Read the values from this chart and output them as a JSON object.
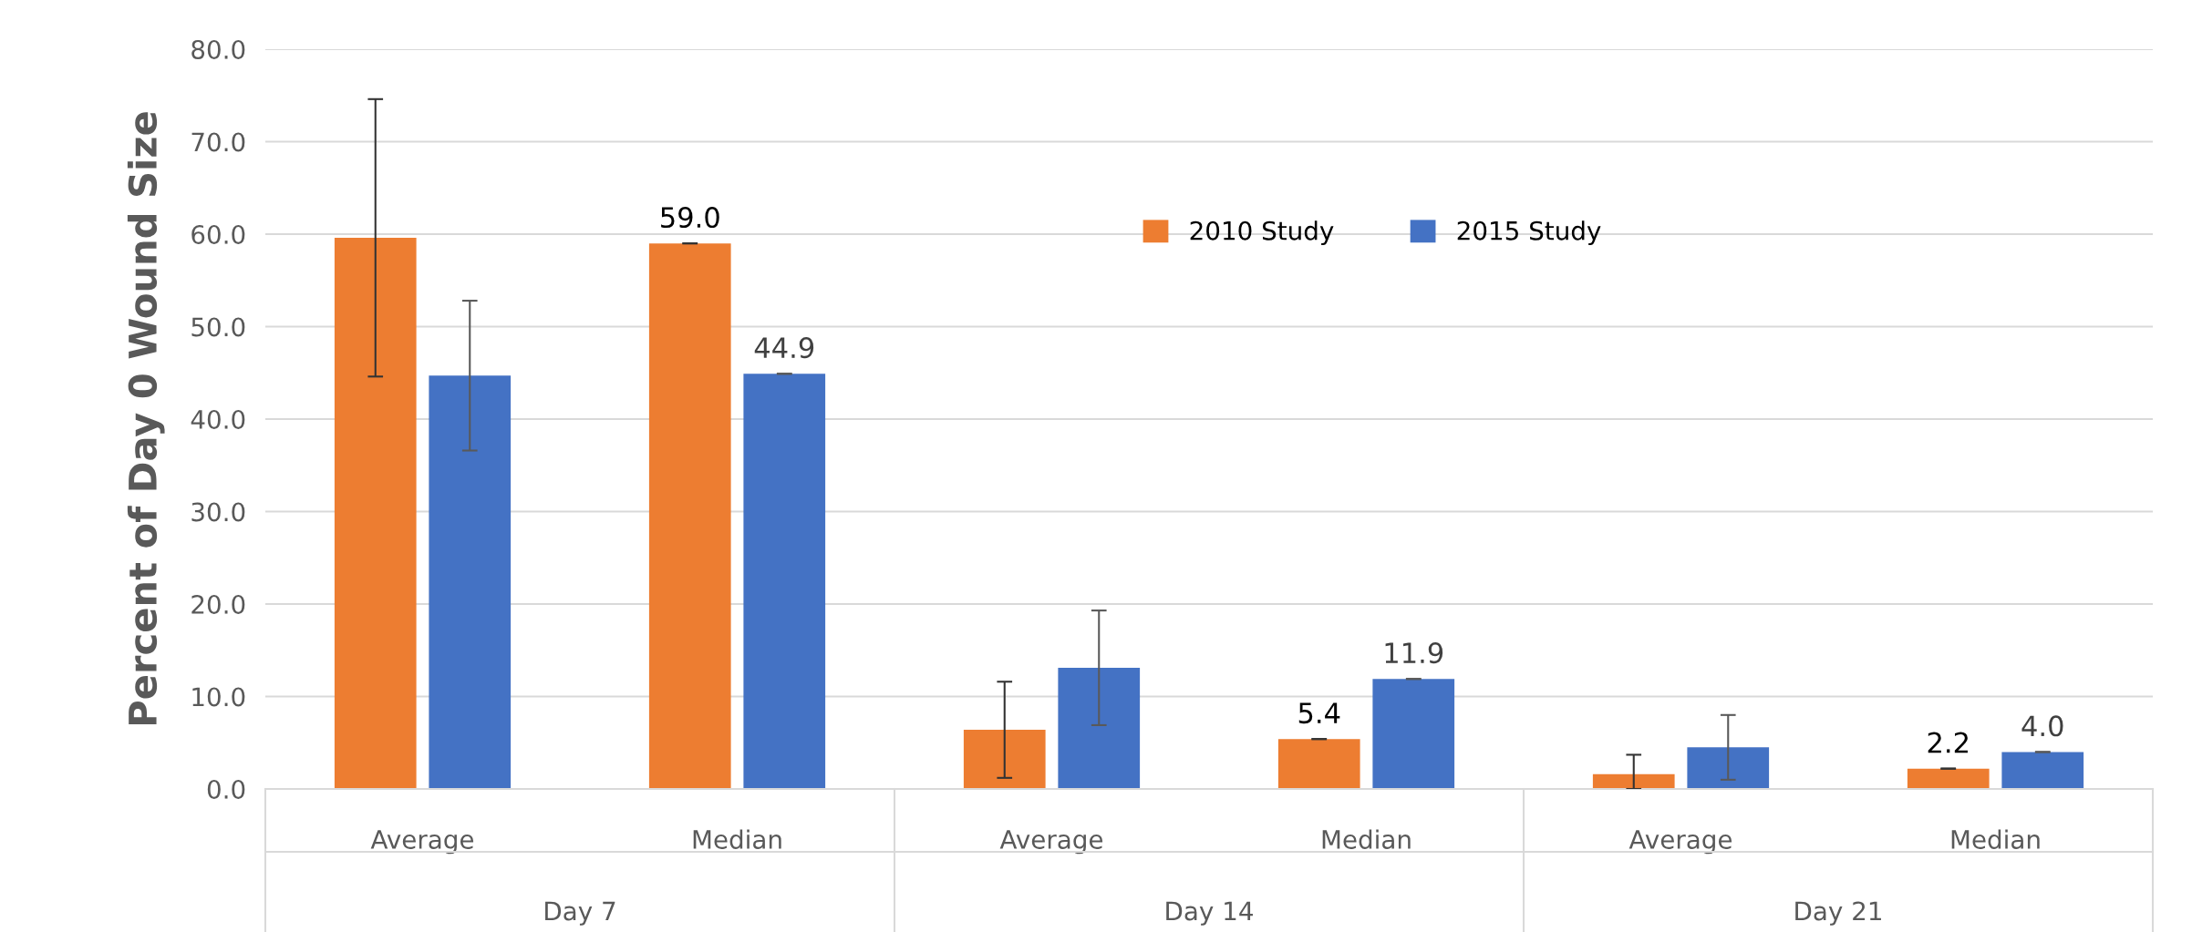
{
  "chart_data": {
    "type": "bar",
    "ylabel": "Percent of Day 0 Wound Size",
    "categories": [
      "Average",
      "Median",
      "Average",
      "Median",
      "Average",
      "Median"
    ],
    "annotations": [
      "Day 7",
      "Day 14",
      "Day 21"
    ],
    "series": [
      {
        "name": "2010 Study",
        "color": "#ed7d31",
        "values": [
          59.6,
          59.0,
          6.4,
          5.4,
          1.6,
          2.2
        ],
        "errors": [
          15.0,
          0,
          5.2,
          0,
          [
            0.0,
            3.7
          ],
          0
        ],
        "value_labels": [
          null,
          "59.0",
          null,
          "5.4",
          null,
          "2.2"
        ]
      },
      {
        "name": "2015 Study",
        "color": "#4472c4",
        "values": [
          44.7,
          44.9,
          13.1,
          11.9,
          4.5,
          4.0
        ],
        "errors": [
          8.1,
          0,
          6.2,
          0,
          3.5,
          0
        ],
        "value_labels": [
          null,
          "44.9",
          null,
          "11.9",
          null,
          "4.0"
        ]
      }
    ],
    "ylim": [
      0,
      80
    ],
    "yticks": [
      {
        "value": 0,
        "label": "0.0"
      },
      {
        "value": 10,
        "label": "10.0"
      },
      {
        "value": 20,
        "label": "20.0"
      },
      {
        "value": 30,
        "label": "30.0"
      },
      {
        "value": 40,
        "label": "40.0"
      },
      {
        "value": 50,
        "label": "50.0"
      },
      {
        "value": 60,
        "label": "60.0"
      },
      {
        "value": 70,
        "label": "70.0"
      },
      {
        "value": 80,
        "label": "80.0"
      }
    ],
    "grid": "y",
    "legend": "top right"
  }
}
